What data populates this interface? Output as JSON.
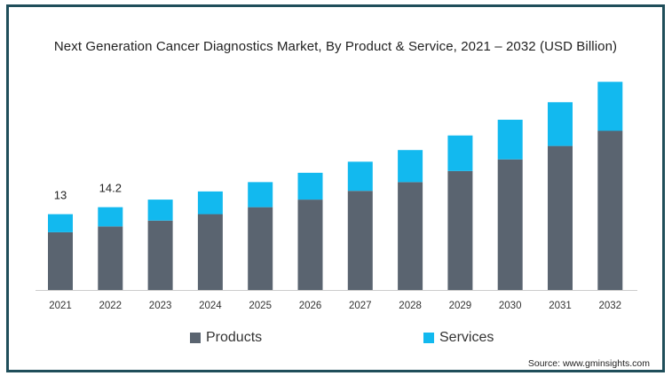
{
  "chart_data": {
    "type": "bar",
    "stacked": true,
    "title": "Next Generation Cancer Diagnostics Market, By Product & Service, 2021 – 2032 (USD Billion)",
    "categories": [
      "2021",
      "2022",
      "2023",
      "2024",
      "2025",
      "2026",
      "2027",
      "2028",
      "2029",
      "2030",
      "2031",
      "2032"
    ],
    "series": [
      {
        "name": "Products",
        "color": "#5a6470",
        "values": [
          9.9,
          10.9,
          11.9,
          13.0,
          14.2,
          15.5,
          17.0,
          18.5,
          20.4,
          22.4,
          24.7,
          27.3
        ]
      },
      {
        "name": "Services",
        "color": "#12b9ef",
        "values": [
          3.1,
          3.3,
          3.6,
          3.9,
          4.3,
          4.6,
          5.0,
          5.5,
          6.1,
          6.8,
          7.5,
          8.4
        ]
      }
    ],
    "data_labels": [
      {
        "category": "2021",
        "text": "13"
      },
      {
        "category": "2022",
        "text": "14.2"
      }
    ],
    "xlabel": "",
    "ylabel": "",
    "ylim": [
      0,
      40
    ],
    "grid": false,
    "legend_position": "bottom"
  },
  "legend": {
    "products_label": "Products",
    "services_label": "Services"
  },
  "source": "Source: www.gminsights.com"
}
